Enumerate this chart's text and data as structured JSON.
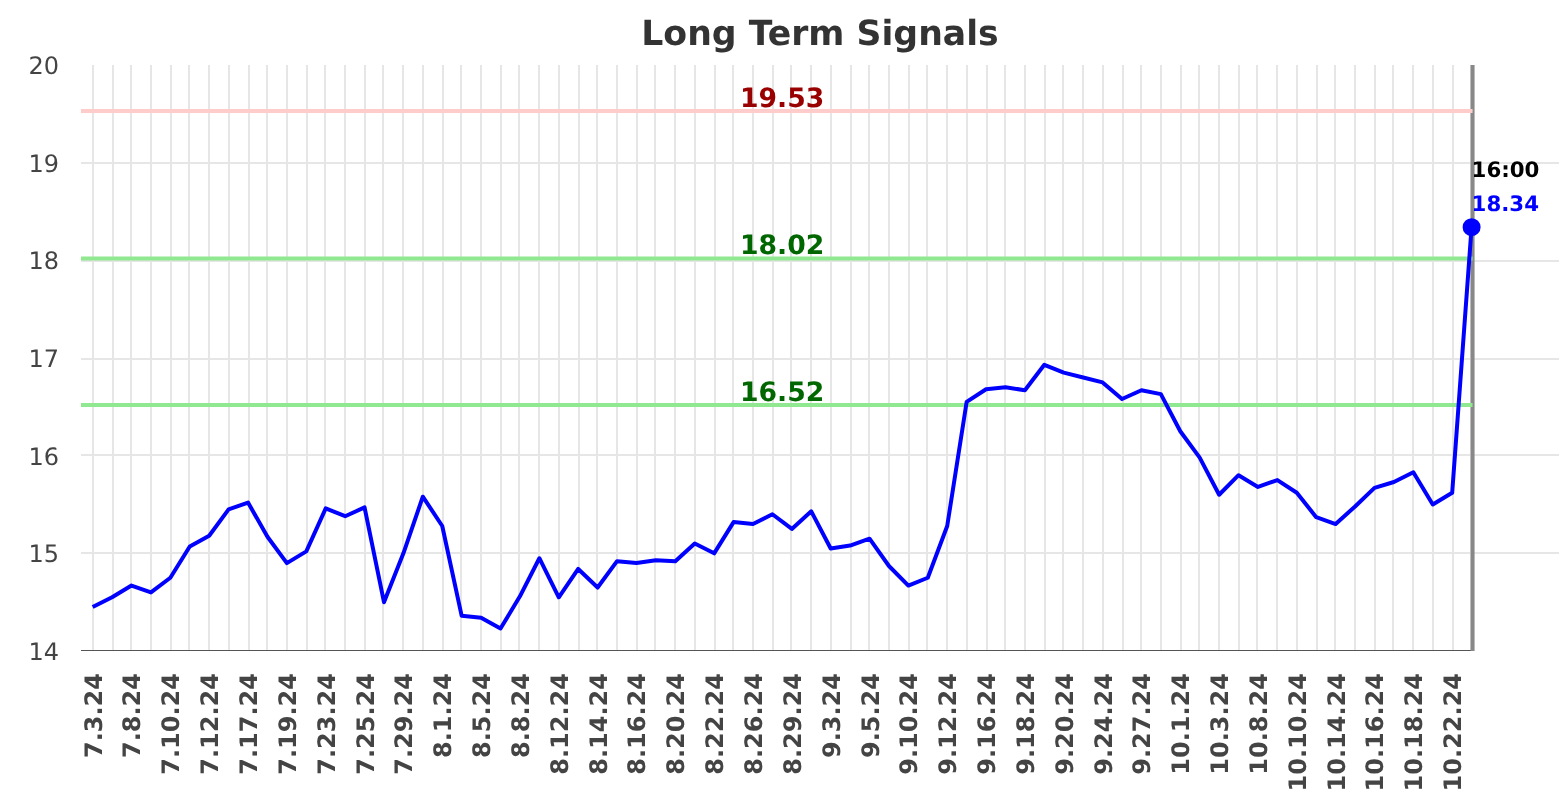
{
  "chart_data": {
    "type": "line",
    "title": "Long Term Signals",
    "categories": [
      "7.3.24",
      null,
      "7.8.24",
      null,
      "7.10.24",
      null,
      "7.12.24",
      null,
      "7.17.24",
      null,
      "7.19.24",
      null,
      "7.23.24",
      null,
      "7.25.24",
      null,
      "7.29.24",
      null,
      "8.1.24",
      null,
      "8.5.24",
      null,
      "8.8.24",
      null,
      "8.12.24",
      null,
      "8.14.24",
      null,
      "8.16.24",
      null,
      "8.20.24",
      null,
      "8.22.24",
      null,
      "8.26.24",
      null,
      "8.29.24",
      null,
      "9.3.24",
      null,
      "9.5.24",
      null,
      "9.10.24",
      null,
      "9.12.24",
      null,
      "9.16.24",
      null,
      "9.18.24",
      null,
      "9.20.24",
      null,
      "9.24.24",
      null,
      "9.27.24",
      null,
      "10.1.24",
      null,
      "10.3.24",
      null,
      "10.8.24",
      null,
      "10.10.24",
      null,
      "10.14.24",
      null,
      "10.16.24",
      null,
      "10.18.24",
      null,
      "10.22.24",
      null
    ],
    "series": [
      {
        "color": "#0000ff",
        "values": [
          14.45,
          14.55,
          14.67,
          14.6,
          14.75,
          15.07,
          15.18,
          15.45,
          15.52,
          15.17,
          14.9,
          15.02,
          15.46,
          15.38,
          15.47,
          14.5,
          15.0,
          15.58,
          15.28,
          14.36,
          14.34,
          14.23,
          14.56,
          14.95,
          14.55,
          14.84,
          14.65,
          14.92,
          14.9,
          14.93,
          14.92,
          15.1,
          15.0,
          15.32,
          15.3,
          15.4,
          15.25,
          15.43,
          15.05,
          15.08,
          15.15,
          14.87,
          14.67,
          14.75,
          15.28,
          16.55,
          16.68,
          16.7,
          16.67,
          16.93,
          16.85,
          16.8,
          16.75,
          16.58,
          16.67,
          16.63,
          16.25,
          15.98,
          15.6,
          15.8,
          15.68,
          15.75,
          15.62,
          15.37,
          15.3,
          15.48,
          15.67,
          15.73,
          15.83,
          15.5,
          15.62,
          18.34
        ],
        "value_labels": [
          null,
          null,
          null,
          null,
          null,
          null,
          null,
          null,
          null,
          null,
          null,
          null,
          null,
          null,
          null,
          null,
          null,
          null,
          null,
          null,
          null,
          null,
          null,
          null,
          null,
          null,
          null,
          null,
          null,
          null,
          null,
          null,
          null,
          null,
          null,
          null,
          null,
          null,
          null,
          null,
          null,
          null,
          null,
          null,
          null,
          null,
          null,
          null,
          null,
          null,
          null,
          null,
          null,
          null,
          null,
          null,
          null,
          null,
          null,
          null,
          null,
          null,
          null,
          null,
          null,
          null,
          null,
          null,
          null,
          null,
          null,
          "18.34"
        ]
      }
    ],
    "ylim": [
      14,
      20
    ],
    "yticks": [
      14,
      15,
      16,
      17,
      18,
      19,
      20
    ],
    "grid": true,
    "marker": "none",
    "line_style": "solid",
    "ref_lines": [
      {
        "axis": "y",
        "value": 19.53,
        "label": "19.53",
        "color": "#ffcccc"
      },
      {
        "axis": "y",
        "value": 18.02,
        "label": "18.02",
        "color": "#90e890"
      },
      {
        "axis": "y",
        "value": 16.52,
        "label": "16.52",
        "color": "#90e890"
      }
    ],
    "annotations": [
      "16:00"
    ]
  }
}
